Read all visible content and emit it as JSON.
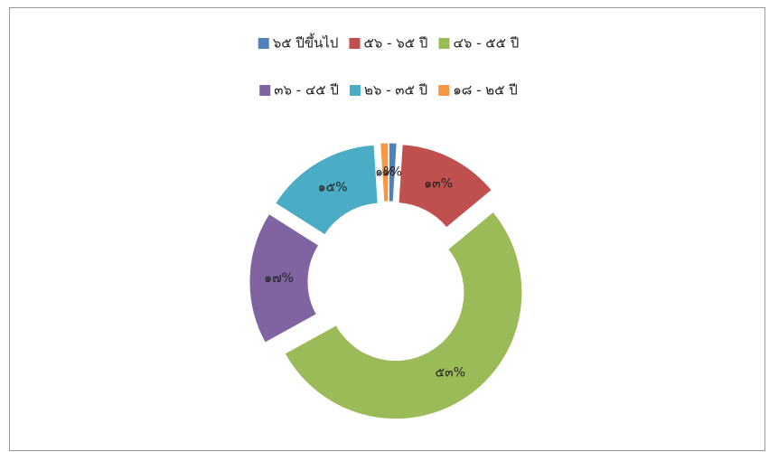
{
  "chart_data": {
    "type": "donut",
    "categories": [
      "๖๕ ปีขึ้นไป",
      "๕๖ - ๖๕ ปี",
      "๔๖ - ๕๕ ปี",
      "๓๖ - ๔๕ ปี",
      "๒๖ - ๓๕ ปี",
      "๑๘ - ๒๕ ปี"
    ],
    "values": [
      1,
      13,
      53,
      17,
      15,
      1
    ],
    "value_labels": [
      "๑%",
      "๑๓%",
      "๕๓%",
      "๑๗%",
      "๑๕%",
      "๑%"
    ],
    "colors": [
      "#4f81bd",
      "#c0504d",
      "#9bbb59",
      "#8064a2",
      "#4bacc6",
      "#f79646"
    ],
    "legend": "top"
  }
}
